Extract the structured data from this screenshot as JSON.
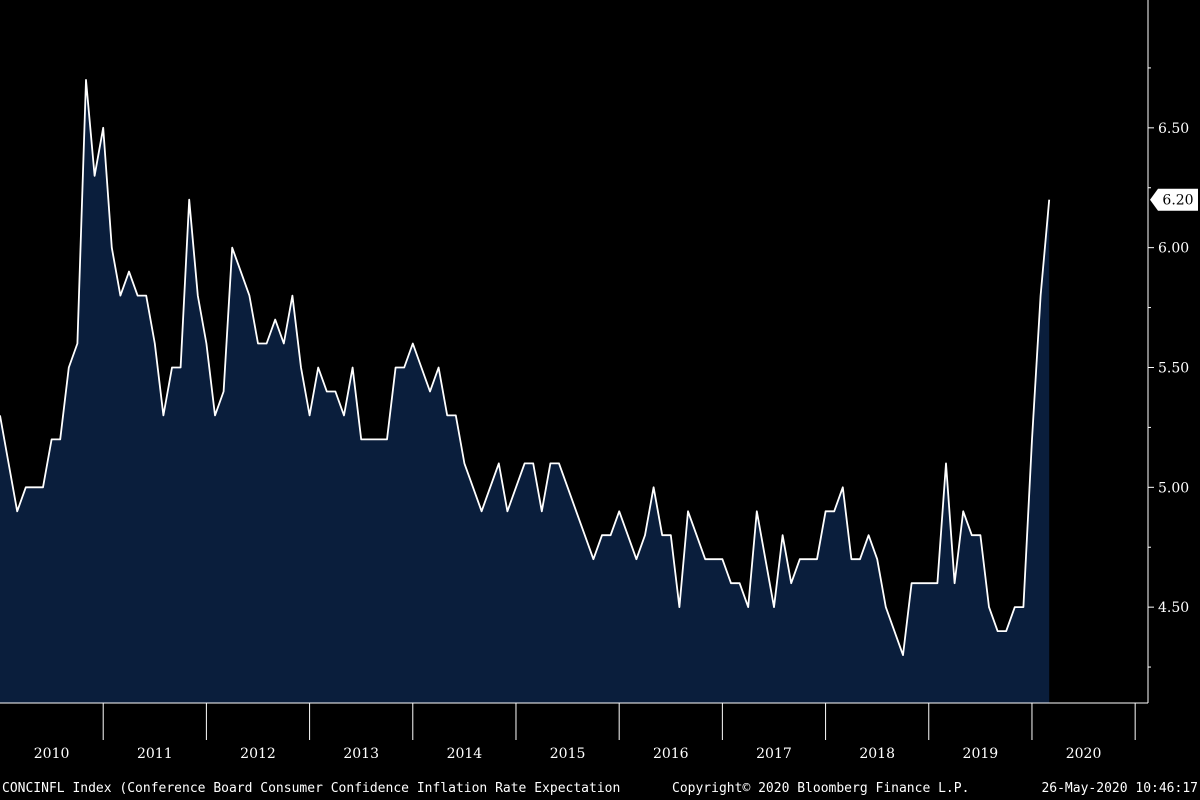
{
  "colors": {
    "background": "#000000",
    "area_fill": "#0a1e3c",
    "line": "#ffffff",
    "axis": "#ffffff"
  },
  "footer": {
    "left": "CONCINFL Index (Conference Board Consumer Confidence Inflation Rate Expectation",
    "center": "Copyright© 2020 Bloomberg Finance L.P.",
    "right": "26-May-2020 10:46:17"
  },
  "chart_data": {
    "type": "area",
    "title": "",
    "xlabel": "",
    "ylabel": "",
    "ylim": [
      4.1,
      6.95
    ],
    "xlim": [
      2010.0,
      2020.95
    ],
    "yticks": [
      4.5,
      5.0,
      5.5,
      6.0,
      6.5
    ],
    "ytick_labels": [
      "4.50",
      "5.00",
      "5.50",
      "6.00",
      "6.50"
    ],
    "x_labels": [
      "2010",
      "2011",
      "2012",
      "2013",
      "2014",
      "2015",
      "2016",
      "2017",
      "2018",
      "2019",
      "2020"
    ],
    "grid": false,
    "legend": "none",
    "last_value_label": "6.20",
    "last_value": 6.2,
    "series": [
      {
        "values": [
          5.3,
          5.1,
          4.9,
          5.0,
          5.0,
          5.0,
          5.2,
          5.2,
          5.5,
          5.6,
          6.7,
          6.3,
          6.5,
          6.0,
          5.8,
          5.9,
          5.8,
          5.8,
          5.6,
          5.3,
          5.5,
          5.5,
          6.2,
          5.8,
          5.6,
          5.3,
          5.4,
          6.0,
          5.9,
          5.8,
          5.6,
          5.6,
          5.7,
          5.6,
          5.8,
          5.5,
          5.3,
          5.5,
          5.4,
          5.4,
          5.3,
          5.5,
          5.2,
          5.2,
          5.2,
          5.2,
          5.5,
          5.5,
          5.6,
          5.5,
          5.4,
          5.5,
          5.3,
          5.3,
          5.1,
          5.0,
          4.9,
          5.0,
          5.1,
          4.9,
          5.0,
          5.1,
          5.1,
          4.9,
          5.1,
          5.1,
          5.0,
          4.9,
          4.8,
          4.7,
          4.8,
          4.8,
          4.9,
          4.8,
          4.7,
          4.8,
          5.0,
          4.8,
          4.8,
          4.5,
          4.9,
          4.8,
          4.7,
          4.7,
          4.7,
          4.6,
          4.6,
          4.5,
          4.9,
          4.7,
          4.5,
          4.8,
          4.6,
          4.7,
          4.7,
          4.7,
          4.9,
          4.9,
          5.0,
          4.7,
          4.7,
          4.8,
          4.7,
          4.5,
          4.4,
          4.3,
          4.6,
          4.6,
          4.6,
          4.6,
          5.1,
          4.6,
          4.9,
          4.8,
          4.8,
          4.5,
          4.4,
          4.4,
          4.5,
          4.5,
          5.2,
          5.8,
          6.2
        ]
      }
    ]
  }
}
